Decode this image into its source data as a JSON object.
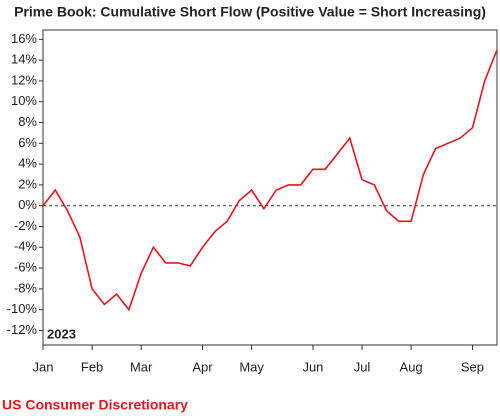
{
  "chart_data": {
    "type": "line",
    "title": "Prime Book: Cumulative Short Flow (Positive Value = Short Increasing)",
    "year_label": "2023",
    "footer": "US Consumer Discretionary",
    "categories": [
      "Jan",
      null,
      null,
      null,
      "Feb",
      null,
      null,
      null,
      "Mar",
      null,
      null,
      null,
      null,
      "Apr",
      null,
      null,
      null,
      "May",
      null,
      null,
      null,
      null,
      "Jun",
      null,
      null,
      null,
      "Jul",
      null,
      null,
      null,
      "Aug",
      null,
      null,
      null,
      null,
      "Sep",
      null,
      null
    ],
    "series": [
      {
        "name": "Cumulative Short Flow",
        "color": "#e8141c",
        "values": [
          0,
          1.5,
          -0.5,
          -3,
          -8,
          -9.5,
          -8.5,
          -10,
          -6.5,
          -4,
          -5.5,
          -5.5,
          -5.8,
          -4,
          -2.5,
          -1.5,
          0.5,
          1.5,
          -0.3,
          1.5,
          2,
          2,
          3.5,
          3.5,
          5,
          6.5,
          2.5,
          2,
          -0.5,
          -1.5,
          -1.5,
          3,
          5.5,
          6,
          6.5,
          7.5,
          12,
          15
        ]
      }
    ],
    "ylim": [
      -13.4,
      16.9
    ],
    "yticks": [
      {
        "value": -12,
        "label": "-12%"
      },
      {
        "value": -10,
        "label": "-10%"
      },
      {
        "value": -8,
        "label": "-8%"
      },
      {
        "value": -6,
        "label": "-6%"
      },
      {
        "value": -4,
        "label": "-4%"
      },
      {
        "value": -2,
        "label": "-2%"
      },
      {
        "value": 0,
        "label": "0%"
      },
      {
        "value": 2,
        "label": "2%"
      },
      {
        "value": 4,
        "label": "4%"
      },
      {
        "value": 6,
        "label": "6%"
      },
      {
        "value": 8,
        "label": "8%"
      },
      {
        "value": 10,
        "label": "10%"
      },
      {
        "value": 12,
        "label": "12%"
      },
      {
        "value": 14,
        "label": "14%"
      },
      {
        "value": 16,
        "label": "16%"
      }
    ],
    "hline": 0,
    "grid": false
  }
}
